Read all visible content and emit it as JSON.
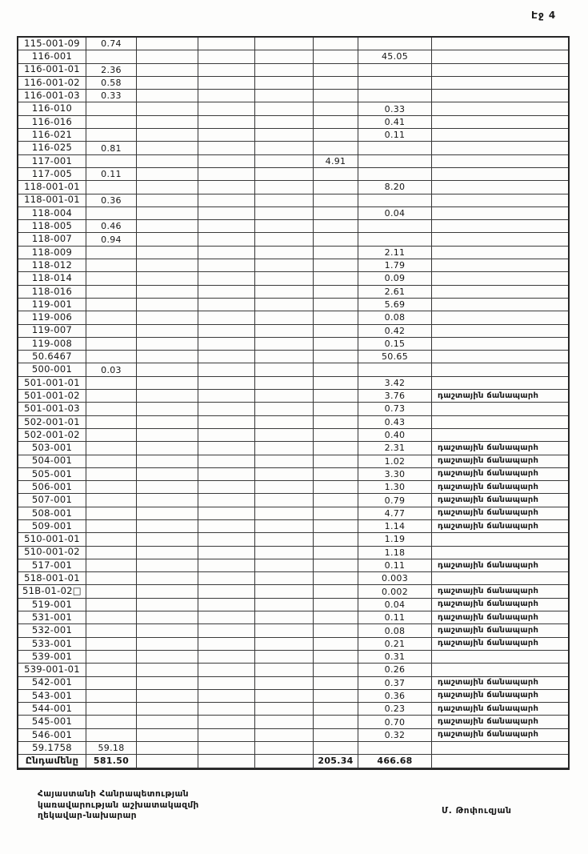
{
  "header": {
    "page_label": "Էջ 4"
  },
  "table": {
    "note_text": "դաշտային ճանապարհ",
    "total_label": "Ընդամենը",
    "rows": [
      {
        "code": "115-001-09",
        "c2": "0.74",
        "c6": "",
        "c7": "",
        "note": false
      },
      {
        "code": "116-001",
        "c2": "",
        "c6": "",
        "c7": "45.05",
        "note": false
      },
      {
        "code": "116-001-01",
        "c2": "2.36",
        "c6": "",
        "c7": "",
        "note": false
      },
      {
        "code": "116-001-02",
        "c2": "0.58",
        "c6": "",
        "c7": "",
        "note": false
      },
      {
        "code": "116-001-03",
        "c2": "0.33",
        "c6": "",
        "c7": "",
        "note": false
      },
      {
        "code": "116-010",
        "c2": "",
        "c6": "",
        "c7": "0.33",
        "note": false
      },
      {
        "code": "116-016",
        "c2": "",
        "c6": "",
        "c7": "0.41",
        "note": false
      },
      {
        "code": "116-021",
        "c2": "",
        "c6": "",
        "c7": "0.11",
        "note": false
      },
      {
        "code": "116-025",
        "c2": "0.81",
        "c6": "",
        "c7": "",
        "note": false
      },
      {
        "code": "117-001",
        "c2": "",
        "c6": "4.91",
        "c7": "",
        "note": false
      },
      {
        "code": "117-005",
        "c2": "0.11",
        "c6": "",
        "c7": "",
        "note": false
      },
      {
        "code": "118-001-01",
        "c2": "",
        "c6": "",
        "c7": "8.20",
        "note": false
      },
      {
        "code": "118-001-01",
        "c2": "0.36",
        "c6": "",
        "c7": "",
        "note": false
      },
      {
        "code": "118-004",
        "c2": "",
        "c6": "",
        "c7": "0.04",
        "note": false
      },
      {
        "code": "118-005",
        "c2": "0.46",
        "c6": "",
        "c7": "",
        "note": false
      },
      {
        "code": "118-007",
        "c2": "0.94",
        "c6": "",
        "c7": "",
        "note": false
      },
      {
        "code": "118-009",
        "c2": "",
        "c6": "",
        "c7": "2.11",
        "note": false
      },
      {
        "code": "118-012",
        "c2": "",
        "c6": "",
        "c7": "1.79",
        "note": false
      },
      {
        "code": "118-014",
        "c2": "",
        "c6": "",
        "c7": "0.09",
        "note": false
      },
      {
        "code": "118-016",
        "c2": "",
        "c6": "",
        "c7": "2.61",
        "note": false
      },
      {
        "code": "119-001",
        "c2": "",
        "c6": "",
        "c7": "5.69",
        "note": false
      },
      {
        "code": "119-006",
        "c2": "",
        "c6": "",
        "c7": "0.08",
        "note": false
      },
      {
        "code": "119-007",
        "c2": "",
        "c6": "",
        "c7": "0.42",
        "note": false
      },
      {
        "code": "119-008",
        "c2": "",
        "c6": "",
        "c7": "0.15",
        "note": false
      },
      {
        "code": "50.6467",
        "c2": "",
        "c6": "",
        "c7": "50.65",
        "note": false
      },
      {
        "code": "500-001",
        "c2": "0.03",
        "c6": "",
        "c7": "",
        "note": false
      },
      {
        "code": "501-001-01",
        "c2": "",
        "c6": "",
        "c7": "3.42",
        "note": false
      },
      {
        "code": "501-001-02",
        "c2": "",
        "c6": "",
        "c7": "3.76",
        "note": true
      },
      {
        "code": "501-001-03",
        "c2": "",
        "c6": "",
        "c7": "0.73",
        "note": false
      },
      {
        "code": "502-001-01",
        "c2": "",
        "c6": "",
        "c7": "0.43",
        "note": false
      },
      {
        "code": "502-001-02",
        "c2": "",
        "c6": "",
        "c7": "0.40",
        "note": false
      },
      {
        "code": "503-001",
        "c2": "",
        "c6": "",
        "c7": "2.31",
        "note": true
      },
      {
        "code": "504-001",
        "c2": "",
        "c6": "",
        "c7": "1.02",
        "note": true
      },
      {
        "code": "505-001",
        "c2": "",
        "c6": "",
        "c7": "3.30",
        "note": true
      },
      {
        "code": "506-001",
        "c2": "",
        "c6": "",
        "c7": "1.30",
        "note": true
      },
      {
        "code": "507-001",
        "c2": "",
        "c6": "",
        "c7": "0.79",
        "note": true
      },
      {
        "code": "508-001",
        "c2": "",
        "c6": "",
        "c7": "4.77",
        "note": true
      },
      {
        "code": "509-001",
        "c2": "",
        "c6": "",
        "c7": "1.14",
        "note": true
      },
      {
        "code": "510-001-01",
        "c2": "",
        "c6": "",
        "c7": "1.19",
        "note": false
      },
      {
        "code": "510-001-02",
        "c2": "",
        "c6": "",
        "c7": "1.18",
        "note": false
      },
      {
        "code": "517-001",
        "c2": "",
        "c6": "",
        "c7": "0.11",
        "note": true
      },
      {
        "code": "518-001-01",
        "c2": "",
        "c6": "",
        "c7": "0.003",
        "note": false
      },
      {
        "code": "51B-01-02□",
        "c2": "",
        "c6": "",
        "c7": "0.002",
        "note": true
      },
      {
        "code": "519-001",
        "c2": "",
        "c6": "",
        "c7": "0.04",
        "note": true
      },
      {
        "code": "531-001",
        "c2": "",
        "c6": "",
        "c7": "0.11",
        "note": true
      },
      {
        "code": "532-001",
        "c2": "",
        "c6": "",
        "c7": "0.08",
        "note": true
      },
      {
        "code": "533-001",
        "c2": "",
        "c6": "",
        "c7": "0.21",
        "note": true
      },
      {
        "code": "539-001",
        "c2": "",
        "c6": "",
        "c7": "0.31",
        "note": false
      },
      {
        "code": "539-001-01",
        "c2": "",
        "c6": "",
        "c7": "0.26",
        "note": false
      },
      {
        "code": "542-001",
        "c2": "",
        "c6": "",
        "c7": "0.37",
        "note": true
      },
      {
        "code": "543-001",
        "c2": "",
        "c6": "",
        "c7": "0.36",
        "note": true
      },
      {
        "code": "544-001",
        "c2": "",
        "c6": "",
        "c7": "0.23",
        "note": true
      },
      {
        "code": "545-001",
        "c2": "",
        "c6": "",
        "c7": "0.70",
        "note": true
      },
      {
        "code": "546-001",
        "c2": "",
        "c6": "",
        "c7": "0.32",
        "note": true
      },
      {
        "code": "59.1758",
        "c2": "59.18",
        "c6": "",
        "c7": "",
        "note": false
      },
      {
        "code": "Ընդամենը",
        "c2": "581.50",
        "c6": "205.34",
        "c7": "466.68",
        "note": false
      }
    ]
  },
  "footer": {
    "lines": [
      "Հայաստանի Հանրապետության",
      "կառավարության աշխատակազմի",
      "ղեկավար-նախարար"
    ],
    "signature": "Մ. Թոփուզյան"
  }
}
